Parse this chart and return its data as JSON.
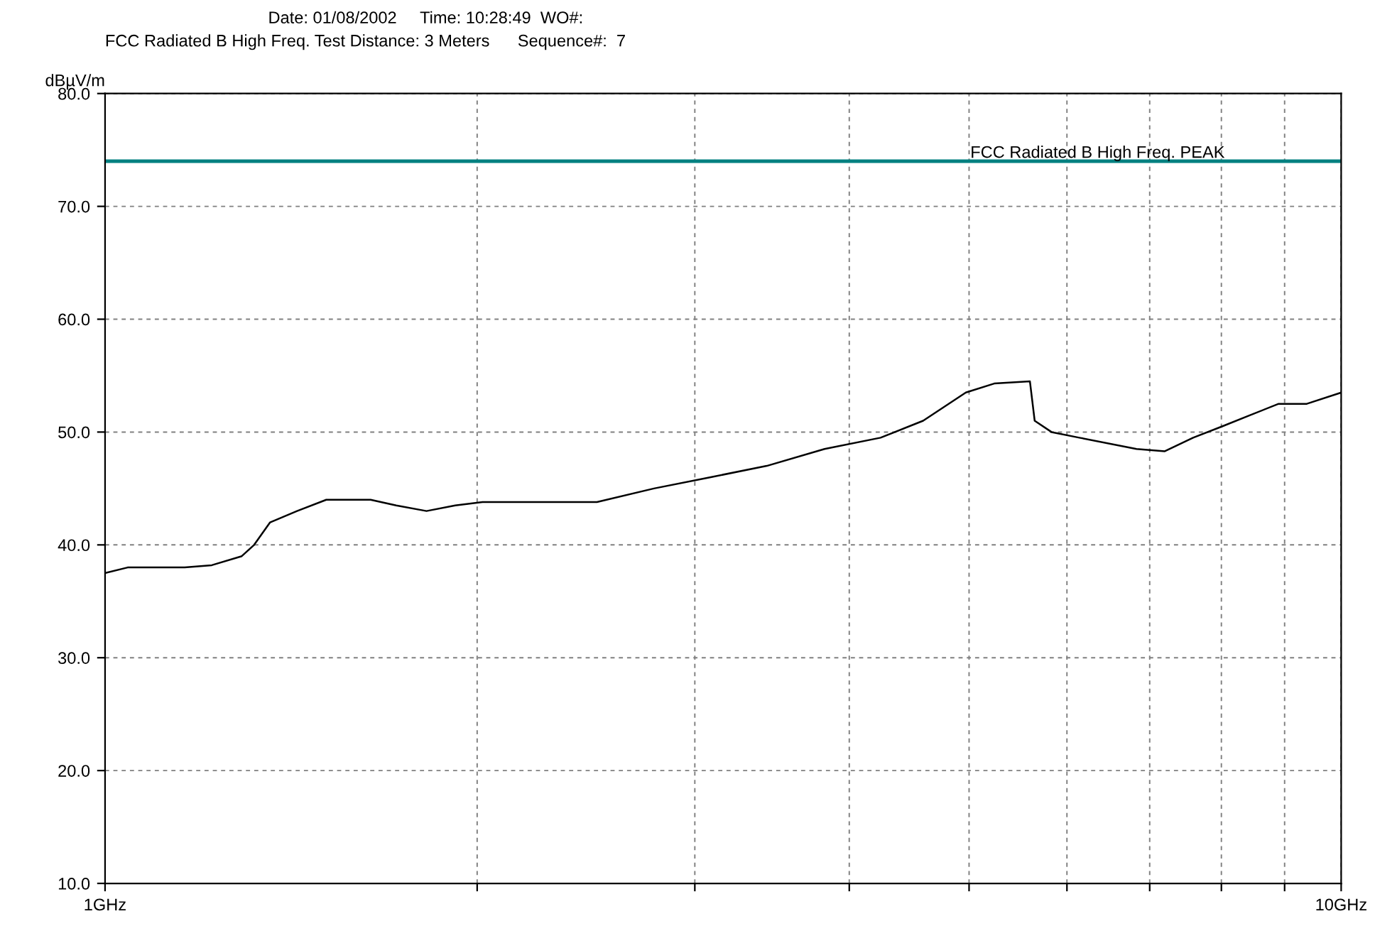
{
  "chart_data": {
    "type": "line",
    "title": "Date: 01/08/2002     Time: 10:28:49  WO#:",
    "subtitle": "FCC Radiated B High Freq. Test Distance: 3 Meters      Sequence#:  7",
    "ylabel": "dBµV/m",
    "log": "x",
    "xlim": [
      1,
      10
    ],
    "xticks": [
      {
        "value": 1,
        "label": "1GHz"
      },
      {
        "value": 2,
        "label": null
      },
      {
        "value": 3,
        "label": null
      },
      {
        "value": 4,
        "label": null
      },
      {
        "value": 5,
        "label": null
      },
      {
        "value": 6,
        "label": null
      },
      {
        "value": 7,
        "label": null
      },
      {
        "value": 8,
        "label": null
      },
      {
        "value": 9,
        "label": null
      },
      {
        "value": 10,
        "label": "10GHz"
      }
    ],
    "ylim": [
      10,
      80
    ],
    "yticks": [
      {
        "value": 10,
        "label": "10.0"
      },
      {
        "value": 20,
        "label": "20.0"
      },
      {
        "value": 30,
        "label": "30.0"
      },
      {
        "value": 40,
        "label": "40.0"
      },
      {
        "value": 50,
        "label": "50.0"
      },
      {
        "value": 60,
        "label": "60.0"
      },
      {
        "value": 70,
        "label": "70.0"
      },
      {
        "value": 80,
        "label": "80.0"
      }
    ],
    "grid": true,
    "line_style": "solid",
    "ref_lines": [
      {
        "axis": "y",
        "value": 74,
        "label": "FCC Radiated B High Freq. PEAK",
        "color": "#008080"
      }
    ],
    "series": [
      {
        "color": "#000000",
        "x": [
          1.0,
          1.043,
          1.1,
          1.16,
          1.22,
          1.29,
          1.32,
          1.36,
          1.43,
          1.51,
          1.64,
          1.72,
          1.82,
          1.92,
          2.02,
          2.25,
          2.5,
          2.78,
          3.09,
          3.43,
          3.82,
          4.24,
          4.59,
          4.97,
          5.24,
          5.6,
          5.65,
          5.83,
          6.14,
          6.83,
          7.2,
          7.59,
          8.01,
          8.44,
          8.9,
          9.38,
          10.0
        ],
        "values": [
          37.5,
          38,
          38,
          38,
          38.2,
          39,
          40,
          42,
          43,
          44,
          44,
          43.5,
          43,
          43.5,
          43.8,
          43.8,
          43.8,
          45,
          46,
          47,
          48.5,
          49.5,
          51,
          53.5,
          54.3,
          54.5,
          51,
          50,
          49.5,
          48.5,
          48.3,
          49.5,
          50.5,
          51.5,
          52.5,
          52.5,
          53.5
        ]
      }
    ]
  }
}
